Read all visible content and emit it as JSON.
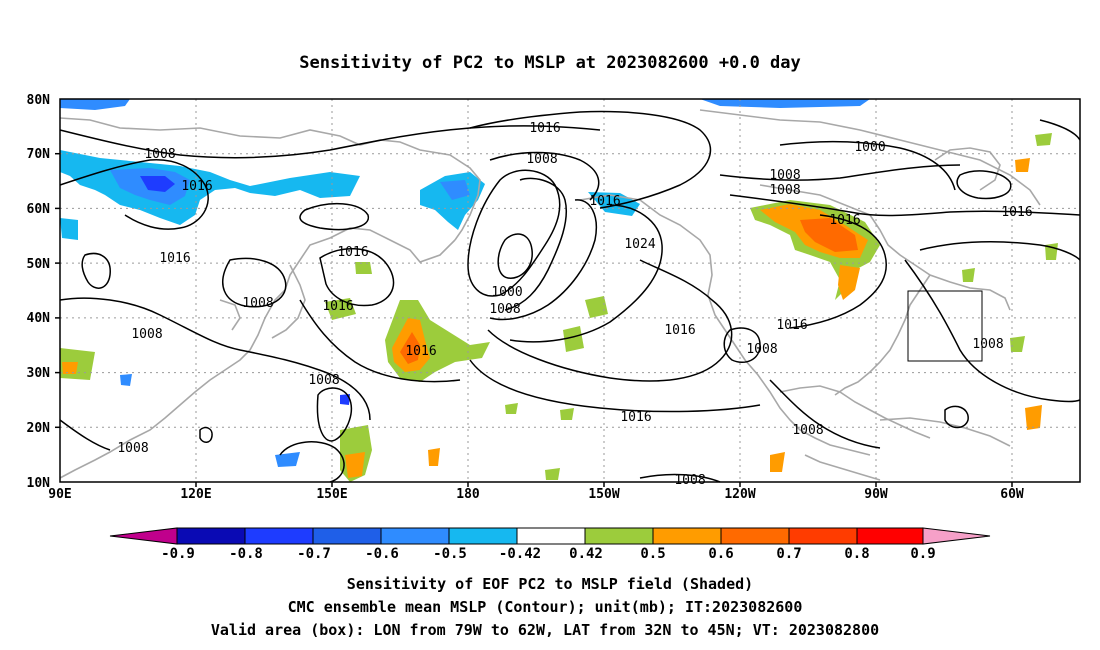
{
  "title": "Sensitivity of PC2 to MSLP at 2023082600 +0.0 day",
  "axes": {
    "lat_labels": [
      "80N",
      "70N",
      "60N",
      "50N",
      "40N",
      "30N",
      "20N",
      "10N"
    ],
    "lon_labels": [
      "90E",
      "120E",
      "150E",
      "180",
      "150W",
      "120W",
      "90W",
      "60W"
    ]
  },
  "contour_labels": [
    "1016",
    "1008",
    "1016",
    "1008",
    "1000",
    "1008",
    "1008",
    "1016",
    "1008",
    "1016",
    "1024",
    "1016",
    "1016",
    "1008",
    "1016",
    "1008",
    "1016",
    "1008",
    "1016",
    "1000",
    "1008",
    "1016",
    "1008",
    "1016",
    "1016",
    "1008",
    "1008",
    "1008"
  ],
  "colorbar": {
    "labels": [
      "-0.9",
      "-0.8",
      "-0.7",
      "-0.6",
      "-0.5",
      "-0.42",
      "0.42",
      "0.5",
      "0.6",
      "0.7",
      "0.8",
      "0.9"
    ],
    "colors": [
      "#c0008c",
      "#0a0ab4",
      "#1e3cff",
      "#1f5fe8",
      "#2f8cff",
      "#16b8f0",
      "#ffffff",
      "#9ccc3c",
      "#ff9c00",
      "#ff6a00",
      "#ff3c00",
      "#ff0000",
      "#f6a0c8"
    ]
  },
  "caption": {
    "line1": "Sensitivity of EOF PC2 to MSLP field (Shaded)",
    "line2": "CMC ensemble mean MSLP (Contour); unit(mb); IT:2023082600",
    "line3": "Valid area (box): LON from 79W to 62W, LAT from 32N to 45N; VT: 2023082800"
  },
  "valid_box": {
    "lon_min": -79,
    "lon_max": -62,
    "lat_min": 32,
    "lat_max": 45
  }
}
